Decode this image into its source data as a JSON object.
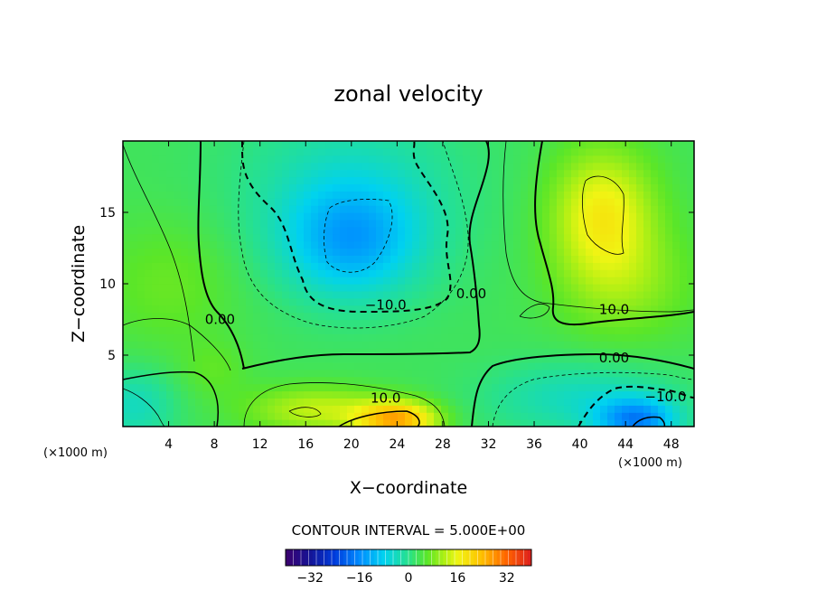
{
  "chart_data": {
    "type": "heatmap",
    "title": "zonal velocity",
    "xlabel": "X−coordinate",
    "ylabel": "Z−coordinate",
    "x_unit_label": "(×1000 m)",
    "xlim": [
      0,
      50
    ],
    "ylim": [
      0,
      20
    ],
    "x_ticks": [
      4,
      8,
      12,
      16,
      20,
      24,
      28,
      32,
      36,
      40,
      44,
      48
    ],
    "x_tick_labels": [
      "4",
      "8",
      "12",
      "16",
      "20",
      "24",
      "28",
      "32",
      "36",
      "40",
      "44",
      "48"
    ],
    "y_ticks": [
      5,
      10,
      15
    ],
    "y_tick_labels": [
      "5",
      "10",
      "15"
    ],
    "contour_interval_text": "CONTOUR INTERVAL = 5.000E+00",
    "contour_labels": [
      {
        "text": "−10.0",
        "x": 23,
        "z": 8.5
      },
      {
        "text": "0.00",
        "x": 8.5,
        "z": 7.5
      },
      {
        "text": "0.00",
        "x": 30.5,
        "z": 9.3
      },
      {
        "text": "10.0",
        "x": 43,
        "z": 8.2
      },
      {
        "text": "0.00",
        "x": 43,
        "z": 4.8
      },
      {
        "text": "10.0",
        "x": 23,
        "z": 2.0
      },
      {
        "text": "−10.0",
        "x": 47.5,
        "z": 2.1
      }
    ],
    "colorbar": {
      "min": -40,
      "max": 40,
      "ticks": [
        -32,
        -16,
        0,
        16,
        32
      ],
      "tick_labels": [
        "−32",
        "−16",
        "0",
        "16",
        "32"
      ]
    },
    "features": [
      {
        "x": 4,
        "z": 10,
        "sx": 6,
        "sz": 4.5,
        "amp": 4
      },
      {
        "x": 20,
        "z": 13,
        "sx": 6,
        "sz": 4,
        "amp": -14
      },
      {
        "x": 20,
        "z": 17,
        "sx": 10,
        "sz": 6,
        "amp": -6
      },
      {
        "x": 42,
        "z": 15,
        "sx": 4.5,
        "sz": 4.5,
        "amp": 14
      },
      {
        "x": 44,
        "z": 10,
        "sx": 6,
        "sz": 4,
        "amp": 6
      },
      {
        "x": 24,
        "z": 0.5,
        "sx": 3.5,
        "sz": 1.3,
        "amp": 22
      },
      {
        "x": 17,
        "z": 1.2,
        "sx": 6,
        "sz": 1.6,
        "amp": 10
      },
      {
        "x": 45,
        "z": 0.5,
        "sx": 3.5,
        "sz": 1.5,
        "amp": -18
      },
      {
        "x": 40,
        "z": 2,
        "sx": 8,
        "sz": 2.5,
        "amp": -7
      },
      {
        "x": 1,
        "z": 1.5,
        "sx": 3.5,
        "sz": 2.5,
        "amp": -7
      },
      {
        "x": 8,
        "z": 4,
        "sx": 3,
        "sz": 2,
        "amp": 3
      }
    ],
    "grid": false
  }
}
